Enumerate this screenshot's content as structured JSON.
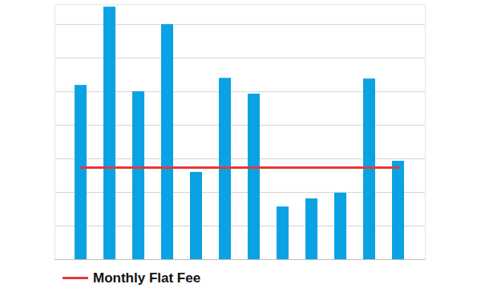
{
  "chart_data": {
    "type": "bar",
    "categories": [
      null,
      null,
      null,
      null,
      null,
      null,
      null,
      null,
      null,
      null,
      null,
      null
    ],
    "series": [
      {
        "type": "bar",
        "color": "#0aa2e3",
        "values": [
          5.19,
          7.52,
          5.0,
          7.0,
          2.6,
          5.4,
          4.93,
          1.57,
          1.81,
          1.98,
          5.38,
          2.93
        ]
      },
      {
        "name": "Monthly Flat Fee",
        "type": "line",
        "color": "#e5383b",
        "values": [
          2.74,
          2.74,
          2.74,
          2.74,
          2.74,
          2.74,
          2.74,
          2.74,
          2.74,
          2.74,
          2.74,
          2.74
        ]
      }
    ],
    "ylim": [
      0,
      7.6
    ],
    "yticks": [
      0,
      1,
      2,
      3,
      4,
      5,
      6,
      7
    ],
    "grid": true,
    "tick_labels": false
  }
}
